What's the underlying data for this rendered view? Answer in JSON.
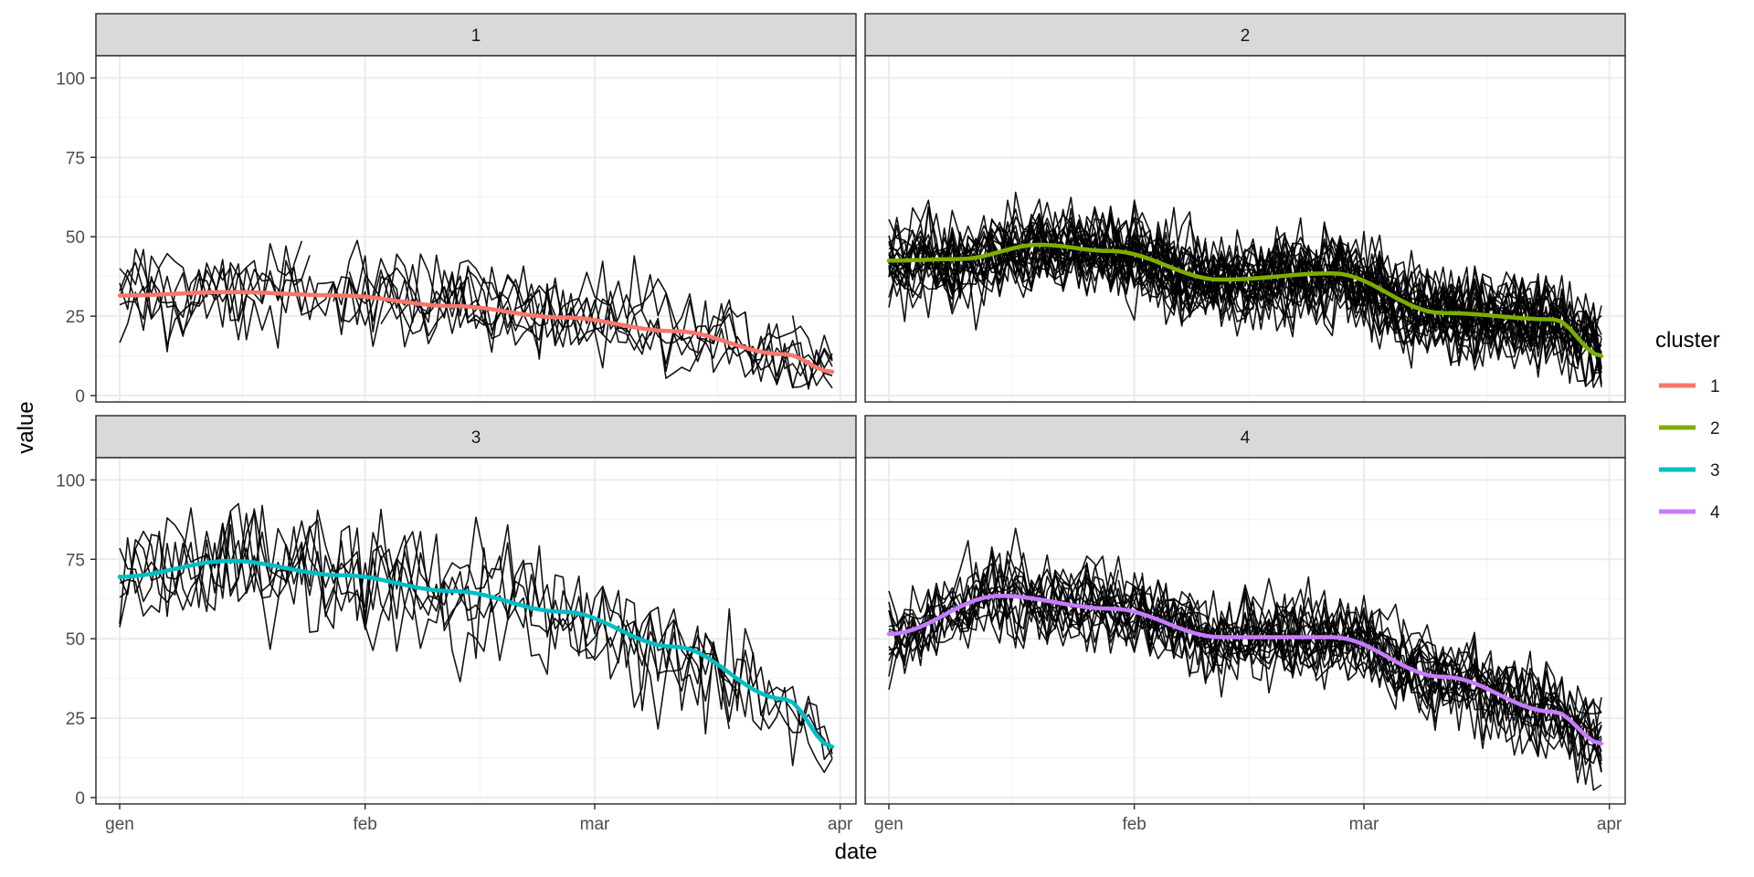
{
  "chart_data": {
    "type": "line",
    "facet_type": "small-multiples",
    "xlabel": "date",
    "ylabel": "value",
    "x_ticks": [
      "gen",
      "feb",
      "mar",
      "apr"
    ],
    "y_ticks": [
      0,
      25,
      50,
      75,
      100
    ],
    "ylim": [
      -2,
      107
    ],
    "grid": true,
    "legend": {
      "title": "cluster",
      "position": "right",
      "entries": [
        "1",
        "2",
        "3",
        "4"
      ],
      "colors": [
        "#F8766D",
        "#7CAE00",
        "#00BFC4",
        "#C77CFF"
      ]
    },
    "panels": [
      {
        "label": "1",
        "cluster": "1",
        "color": "#F8766D",
        "smooth": [
          {
            "x": "2020-01-01",
            "y": 31.5
          },
          {
            "x": "2020-01-15",
            "y": 32.6
          },
          {
            "x": "2020-01-29",
            "y": 31.5
          },
          {
            "x": "2020-02-12",
            "y": 28.2
          },
          {
            "x": "2020-02-26",
            "y": 24.6
          },
          {
            "x": "2020-03-11",
            "y": 20.3
          },
          {
            "x": "2020-03-25",
            "y": 13.0
          },
          {
            "x": "2020-03-31",
            "y": 7.5
          }
        ],
        "member_series": 8
      },
      {
        "label": "2",
        "cluster": "2",
        "color": "#7CAE00",
        "smooth": [
          {
            "x": "2020-01-01",
            "y": 42.5
          },
          {
            "x": "2020-01-10",
            "y": 43.0
          },
          {
            "x": "2020-01-20",
            "y": 47.5
          },
          {
            "x": "2020-01-29",
            "y": 45.5
          },
          {
            "x": "2020-02-12",
            "y": 36.5
          },
          {
            "x": "2020-02-26",
            "y": 38.5
          },
          {
            "x": "2020-03-11",
            "y": 26.0
          },
          {
            "x": "2020-03-25",
            "y": 24.0
          },
          {
            "x": "2020-03-31",
            "y": 12.5
          }
        ],
        "member_series": 30
      },
      {
        "label": "3",
        "cluster": "3",
        "color": "#00BFC4",
        "smooth": [
          {
            "x": "2020-01-01",
            "y": 69.5
          },
          {
            "x": "2020-01-15",
            "y": 74.5
          },
          {
            "x": "2020-01-29",
            "y": 70.0
          },
          {
            "x": "2020-02-12",
            "y": 65.0
          },
          {
            "x": "2020-02-26",
            "y": 58.5
          },
          {
            "x": "2020-03-11",
            "y": 47.5
          },
          {
            "x": "2020-03-25",
            "y": 31.0
          },
          {
            "x": "2020-03-31",
            "y": 16.0
          }
        ],
        "member_series": 6
      },
      {
        "label": "4",
        "cluster": "4",
        "color": "#C77CFF",
        "smooth": [
          {
            "x": "2020-01-01",
            "y": 51.5
          },
          {
            "x": "2020-01-15",
            "y": 63.5
          },
          {
            "x": "2020-01-29",
            "y": 59.5
          },
          {
            "x": "2020-02-12",
            "y": 50.5
          },
          {
            "x": "2020-02-26",
            "y": 50.5
          },
          {
            "x": "2020-03-11",
            "y": 38.0
          },
          {
            "x": "2020-03-25",
            "y": 27.0
          },
          {
            "x": "2020-03-31",
            "y": 17.0
          }
        ],
        "member_series": 20
      }
    ]
  }
}
